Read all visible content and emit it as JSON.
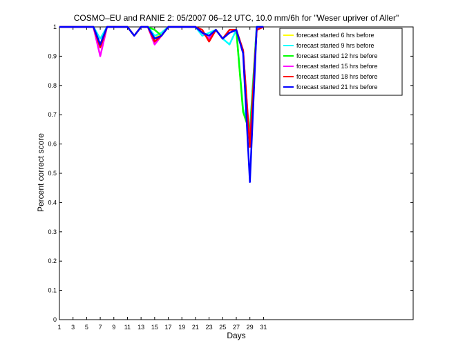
{
  "chart_data": {
    "type": "line",
    "title": "COSMO–EU and RANIE 2: 05/2007 06–12 UTC, 10.0 mm/6h for \"Weser upriver of Aller\"",
    "xlabel": "Days",
    "ylabel": "Percent correct score",
    "xlim": [
      1,
      53
    ],
    "ylim": [
      0,
      1
    ],
    "xticks": [
      1,
      3,
      5,
      7,
      9,
      11,
      13,
      15,
      17,
      19,
      21,
      23,
      25,
      27,
      29,
      31
    ],
    "yticks": [
      0,
      0.1,
      0.2,
      0.3,
      0.4,
      0.5,
      0.6,
      0.7,
      0.8,
      0.9,
      1
    ],
    "ytick_labels": [
      "0",
      "0.1",
      "0.2",
      "0.3",
      "0.4",
      "0.5",
      "0.6",
      "0.7",
      "0.8",
      "0.9",
      "1"
    ],
    "grid": false,
    "legend_position": "top-right",
    "x": [
      1,
      2,
      3,
      4,
      5,
      6,
      7,
      8,
      9,
      10,
      11,
      12,
      13,
      14,
      15,
      16,
      17,
      18,
      19,
      20,
      21,
      22,
      23,
      24,
      25,
      26,
      27,
      28,
      29,
      30,
      31
    ],
    "series": [
      {
        "name": "forecast started 6 hrs before",
        "color": "#ffff00",
        "values": [
          1,
          1,
          1,
          1,
          1,
          1,
          0.94,
          1,
          1,
          1,
          1,
          0.97,
          1,
          1,
          0.96,
          0.98,
          1,
          1,
          1,
          1,
          1,
          0.98,
          0.96,
          0.99,
          0.96,
          0.98,
          0.99,
          0.71,
          0.64,
          0.99,
          1
        ]
      },
      {
        "name": "forecast started 9 hrs before",
        "color": "#00ffff",
        "values": [
          1,
          1,
          1,
          1,
          1,
          1,
          0.96,
          1,
          1,
          1,
          1,
          0.97,
          1,
          1,
          0.97,
          0.98,
          1,
          1,
          1,
          1,
          1,
          0.97,
          0.98,
          0.99,
          0.96,
          0.94,
          0.99,
          0.72,
          0.65,
          1,
          1
        ]
      },
      {
        "name": "forecast started 12 hrs before",
        "color": "#00ff00",
        "values": [
          1,
          1,
          1,
          1,
          1,
          1,
          0.94,
          1,
          1,
          1,
          1,
          0.97,
          1,
          1,
          0.99,
          0.97,
          1,
          1,
          1,
          1,
          1,
          0.98,
          0.97,
          0.99,
          0.96,
          0.98,
          0.99,
          0.71,
          0.64,
          1,
          1
        ]
      },
      {
        "name": "forecast started 15 hrs before",
        "color": "#ff00ff",
        "values": [
          1,
          1,
          1,
          1,
          1,
          1,
          0.9,
          1,
          1,
          1,
          1,
          0.97,
          1,
          1,
          0.94,
          0.97,
          1,
          1,
          1,
          1,
          1,
          0.98,
          0.96,
          0.99,
          0.96,
          0.98,
          0.99,
          0.92,
          0.6,
          0.99,
          1
        ]
      },
      {
        "name": "forecast started 18 hrs before",
        "color": "#ff0000",
        "values": [
          1,
          1,
          1,
          1,
          1,
          1,
          0.93,
          1,
          1,
          1,
          1,
          0.97,
          1,
          1,
          0.95,
          0.97,
          1,
          1,
          1,
          1,
          1,
          0.99,
          0.95,
          0.99,
          0.96,
          0.99,
          0.99,
          0.92,
          0.59,
          0.99,
          1
        ]
      },
      {
        "name": "forecast started 21 hrs before",
        "color": "#0000ff",
        "values": [
          1,
          1,
          1,
          1,
          1,
          1,
          0.94,
          1,
          1,
          1,
          1,
          0.97,
          1,
          1,
          0.96,
          0.97,
          1,
          1,
          1,
          1,
          1,
          0.98,
          0.97,
          0.99,
          0.96,
          0.98,
          0.99,
          0.91,
          0.47,
          1,
          1
        ]
      }
    ]
  }
}
